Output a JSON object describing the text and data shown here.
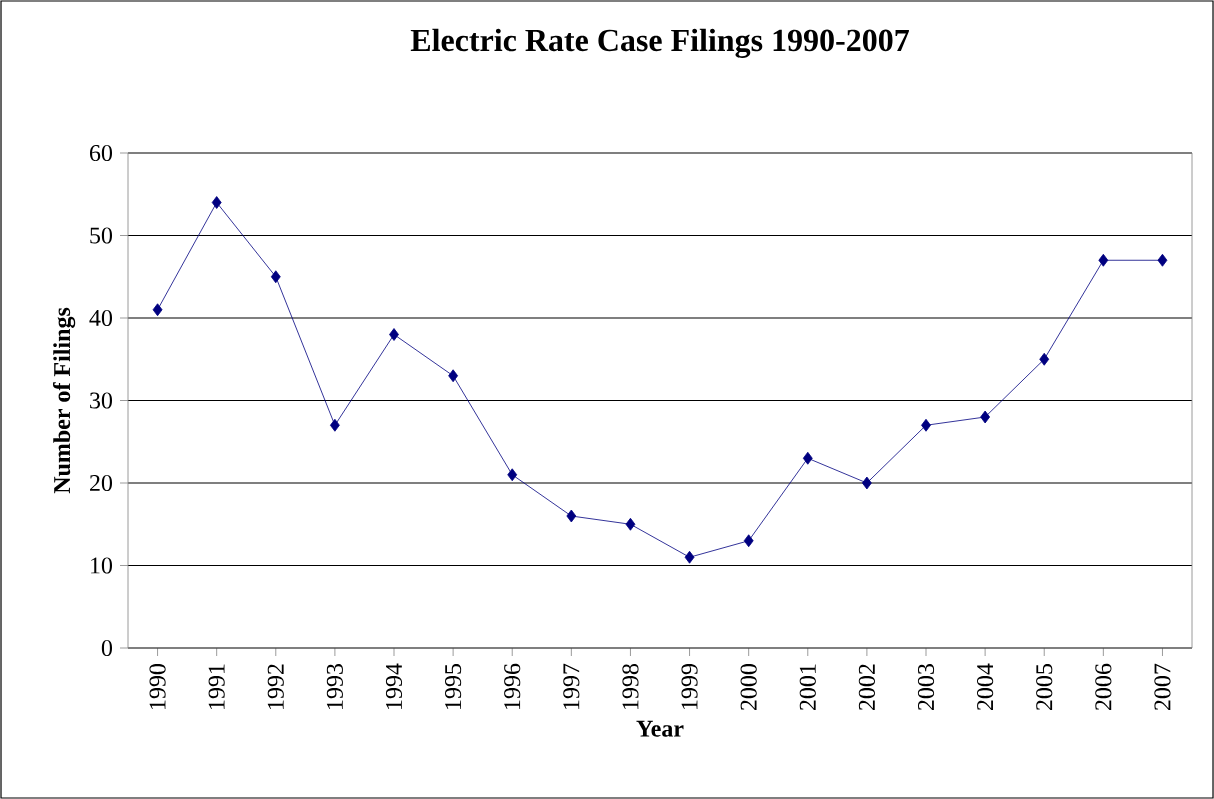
{
  "chart_data": {
    "type": "line",
    "title": "Electric Rate Case Filings 1990-2007",
    "xlabel": "Year",
    "ylabel": "Number of Filings",
    "categories": [
      "1990",
      "1991",
      "1992",
      "1993",
      "1994",
      "1995",
      "1996",
      "1997",
      "1998",
      "1999",
      "2000",
      "2001",
      "2002",
      "2003",
      "2004",
      "2005",
      "2006",
      "2007"
    ],
    "values": [
      41,
      54,
      45,
      27,
      38,
      33,
      21,
      16,
      15,
      11,
      13,
      23,
      20,
      27,
      28,
      35,
      47,
      47
    ],
    "color": "#000080",
    "marker": "diamond",
    "line_style": "solid",
    "ylim": [
      0,
      60
    ],
    "yticks": [
      0,
      10,
      20,
      30,
      40,
      50,
      60
    ],
    "grid": "y"
  }
}
